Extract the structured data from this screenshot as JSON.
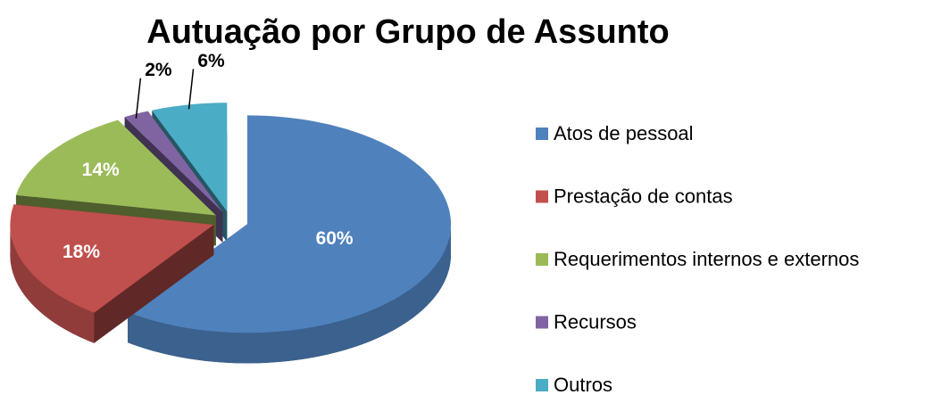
{
  "chart_data": {
    "type": "pie",
    "title": "Autuação por Grupo de Assunto",
    "categories": [
      "Atos de pessoal",
      "Prestação de contas",
      "Requerimentos internos e externos",
      "Recursos",
      "Outros"
    ],
    "values": [
      60,
      18,
      14,
      2,
      6
    ],
    "value_labels": [
      "60%",
      "18%",
      "14%",
      "2%",
      "6%"
    ],
    "colors": [
      "#4f81bd",
      "#c0504d",
      "#9bbb59",
      "#8064a2",
      "#4bacc6"
    ],
    "legend": "right"
  }
}
